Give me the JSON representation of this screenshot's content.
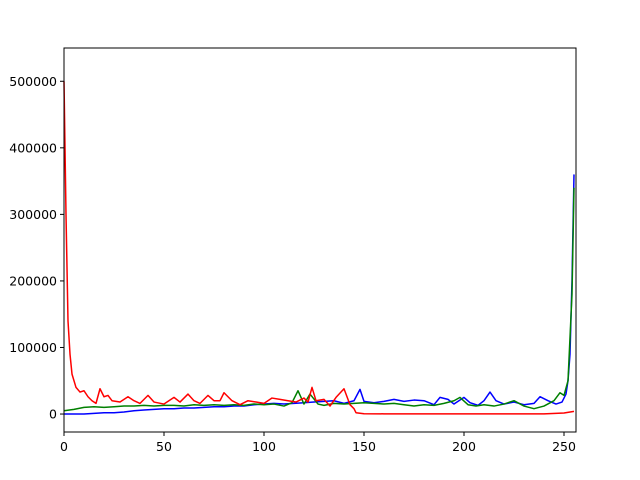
{
  "chart_data": {
    "type": "line",
    "title": "",
    "xlabel": "",
    "ylabel": "",
    "xlim": [
      0,
      256
    ],
    "ylim": [
      -27000,
      550000
    ],
    "x_ticks": [
      0,
      50,
      100,
      150,
      200,
      250
    ],
    "y_ticks": [
      0,
      100000,
      200000,
      300000,
      400000,
      500000
    ],
    "grid": false,
    "legend": "none",
    "series": [
      {
        "color": "#0000ff",
        "points": [
          [
            0,
            0
          ],
          [
            5,
            0
          ],
          [
            10,
            0
          ],
          [
            15,
            1000
          ],
          [
            20,
            2000
          ],
          [
            25,
            2000
          ],
          [
            30,
            3000
          ],
          [
            35,
            5000
          ],
          [
            40,
            6000
          ],
          [
            45,
            7000
          ],
          [
            50,
            8000
          ],
          [
            55,
            8000
          ],
          [
            60,
            9000
          ],
          [
            65,
            9000
          ],
          [
            70,
            10000
          ],
          [
            75,
            11000
          ],
          [
            80,
            11000
          ],
          [
            85,
            12000
          ],
          [
            90,
            12000
          ],
          [
            95,
            14000
          ],
          [
            100,
            15000
          ],
          [
            105,
            16000
          ],
          [
            110,
            15000
          ],
          [
            115,
            16000
          ],
          [
            120,
            17000
          ],
          [
            125,
            18000
          ],
          [
            130,
            19000
          ],
          [
            135,
            20000
          ],
          [
            140,
            16000
          ],
          [
            145,
            20000
          ],
          [
            148,
            37000
          ],
          [
            150,
            19000
          ],
          [
            155,
            17000
          ],
          [
            160,
            19000
          ],
          [
            165,
            22000
          ],
          [
            170,
            19000
          ],
          [
            175,
            21000
          ],
          [
            180,
            20000
          ],
          [
            185,
            14000
          ],
          [
            188,
            25000
          ],
          [
            192,
            22000
          ],
          [
            195,
            15000
          ],
          [
            200,
            25000
          ],
          [
            203,
            17000
          ],
          [
            207,
            13000
          ],
          [
            210,
            20000
          ],
          [
            213,
            33000
          ],
          [
            216,
            20000
          ],
          [
            220,
            15000
          ],
          [
            225,
            18000
          ],
          [
            230,
            14000
          ],
          [
            235,
            16000
          ],
          [
            238,
            26000
          ],
          [
            242,
            20000
          ],
          [
            246,
            15000
          ],
          [
            249,
            18000
          ],
          [
            251,
            30000
          ],
          [
            252,
            50000
          ],
          [
            253,
            90000
          ],
          [
            254,
            200000
          ],
          [
            255,
            360000
          ]
        ]
      },
      {
        "color": "#008000",
        "points": [
          [
            0,
            5000
          ],
          [
            5,
            7000
          ],
          [
            10,
            10000
          ],
          [
            15,
            11000
          ],
          [
            20,
            10000
          ],
          [
            25,
            11000
          ],
          [
            30,
            12000
          ],
          [
            35,
            12000
          ],
          [
            40,
            13000
          ],
          [
            45,
            12000
          ],
          [
            50,
            13000
          ],
          [
            55,
            13000
          ],
          [
            60,
            12000
          ],
          [
            65,
            14000
          ],
          [
            70,
            13000
          ],
          [
            75,
            14000
          ],
          [
            80,
            13000
          ],
          [
            85,
            14000
          ],
          [
            90,
            13000
          ],
          [
            95,
            15000
          ],
          [
            100,
            14000
          ],
          [
            105,
            15000
          ],
          [
            110,
            12000
          ],
          [
            114,
            17000
          ],
          [
            117,
            35000
          ],
          [
            120,
            15000
          ],
          [
            123,
            30000
          ],
          [
            127,
            15000
          ],
          [
            130,
            13000
          ],
          [
            135,
            16000
          ],
          [
            140,
            15000
          ],
          [
            145,
            16000
          ],
          [
            150,
            17000
          ],
          [
            155,
            16000
          ],
          [
            160,
            15000
          ],
          [
            165,
            16000
          ],
          [
            170,
            14000
          ],
          [
            175,
            12000
          ],
          [
            180,
            14000
          ],
          [
            185,
            13000
          ],
          [
            190,
            16000
          ],
          [
            195,
            20000
          ],
          [
            198,
            25000
          ],
          [
            202,
            14000
          ],
          [
            206,
            12000
          ],
          [
            210,
            14000
          ],
          [
            215,
            12000
          ],
          [
            220,
            15000
          ],
          [
            225,
            20000
          ],
          [
            230,
            12000
          ],
          [
            235,
            8000
          ],
          [
            240,
            12000
          ],
          [
            245,
            20000
          ],
          [
            248,
            32000
          ],
          [
            250,
            28000
          ],
          [
            252,
            50000
          ],
          [
            254,
            180000
          ],
          [
            255,
            340000
          ]
        ]
      },
      {
        "color": "#ff0000",
        "points": [
          [
            0,
            500000
          ],
          [
            1,
            300000
          ],
          [
            2,
            140000
          ],
          [
            3,
            90000
          ],
          [
            4,
            60000
          ],
          [
            6,
            40000
          ],
          [
            8,
            33000
          ],
          [
            10,
            35000
          ],
          [
            12,
            26000
          ],
          [
            14,
            20000
          ],
          [
            16,
            16000
          ],
          [
            18,
            38000
          ],
          [
            20,
            26000
          ],
          [
            22,
            28000
          ],
          [
            24,
            20000
          ],
          [
            28,
            18000
          ],
          [
            32,
            26000
          ],
          [
            35,
            20000
          ],
          [
            38,
            16000
          ],
          [
            42,
            28000
          ],
          [
            45,
            18000
          ],
          [
            50,
            15000
          ],
          [
            55,
            25000
          ],
          [
            58,
            18000
          ],
          [
            62,
            30000
          ],
          [
            65,
            20000
          ],
          [
            68,
            16000
          ],
          [
            72,
            28000
          ],
          [
            75,
            20000
          ],
          [
            78,
            20000
          ],
          [
            80,
            32000
          ],
          [
            84,
            20000
          ],
          [
            88,
            14000
          ],
          [
            92,
            20000
          ],
          [
            96,
            18000
          ],
          [
            100,
            16000
          ],
          [
            104,
            24000
          ],
          [
            108,
            22000
          ],
          [
            112,
            20000
          ],
          [
            116,
            18000
          ],
          [
            120,
            24000
          ],
          [
            122,
            18000
          ],
          [
            124,
            40000
          ],
          [
            126,
            20000
          ],
          [
            130,
            22000
          ],
          [
            133,
            12000
          ],
          [
            136,
            25000
          ],
          [
            140,
            38000
          ],
          [
            143,
            14000
          ],
          [
            145,
            8000
          ],
          [
            146,
            2000
          ],
          [
            150,
            500
          ],
          [
            160,
            300
          ],
          [
            180,
            200
          ],
          [
            200,
            200
          ],
          [
            220,
            200
          ],
          [
            240,
            300
          ],
          [
            250,
            1500
          ],
          [
            255,
            4000
          ]
        ]
      }
    ]
  }
}
